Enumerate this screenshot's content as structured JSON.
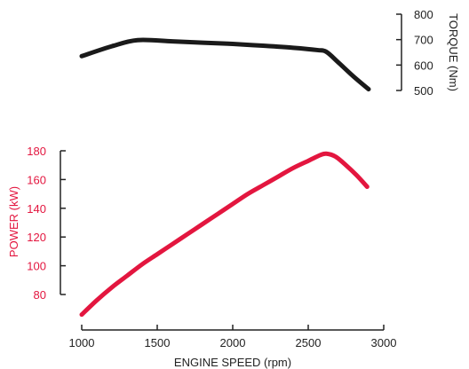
{
  "chart_data": {
    "type": "line",
    "xlabel": "ENGINE SPEED (rpm)",
    "xlim": [
      1000,
      3000
    ],
    "x_ticks": [
      1000,
      1500,
      2000,
      2500,
      3000
    ],
    "series": [
      {
        "name": "TORQUE (Nm)",
        "axis": "right",
        "color": "#1a1a1a",
        "ylim": [
          500,
          800
        ],
        "y_ticks": [
          500,
          600,
          700,
          800
        ],
        "x": [
          1000,
          1200,
          1370,
          1600,
          1800,
          2000,
          2200,
          2400,
          2560,
          2620,
          2700,
          2800,
          2900
        ],
        "values": [
          635,
          674,
          698,
          693,
          688,
          683,
          676,
          668,
          659,
          652,
          610,
          555,
          505
        ]
      },
      {
        "name": "POWER (kW)",
        "axis": "left",
        "color": "#e3163f",
        "ylim": [
          70,
          180
        ],
        "y_ticks": [
          80,
          100,
          120,
          140,
          160,
          180
        ],
        "x": [
          1000,
          1100,
          1200,
          1300,
          1400,
          1500,
          1600,
          1700,
          1800,
          1900,
          2000,
          2100,
          2200,
          2300,
          2400,
          2500,
          2580,
          2620,
          2680,
          2750,
          2820,
          2890
        ],
        "values": [
          66,
          76,
          85,
          93,
          101,
          108,
          115,
          122,
          129,
          136,
          143,
          150,
          156,
          162,
          168,
          173,
          177,
          178,
          176,
          170,
          163,
          155
        ]
      }
    ]
  }
}
